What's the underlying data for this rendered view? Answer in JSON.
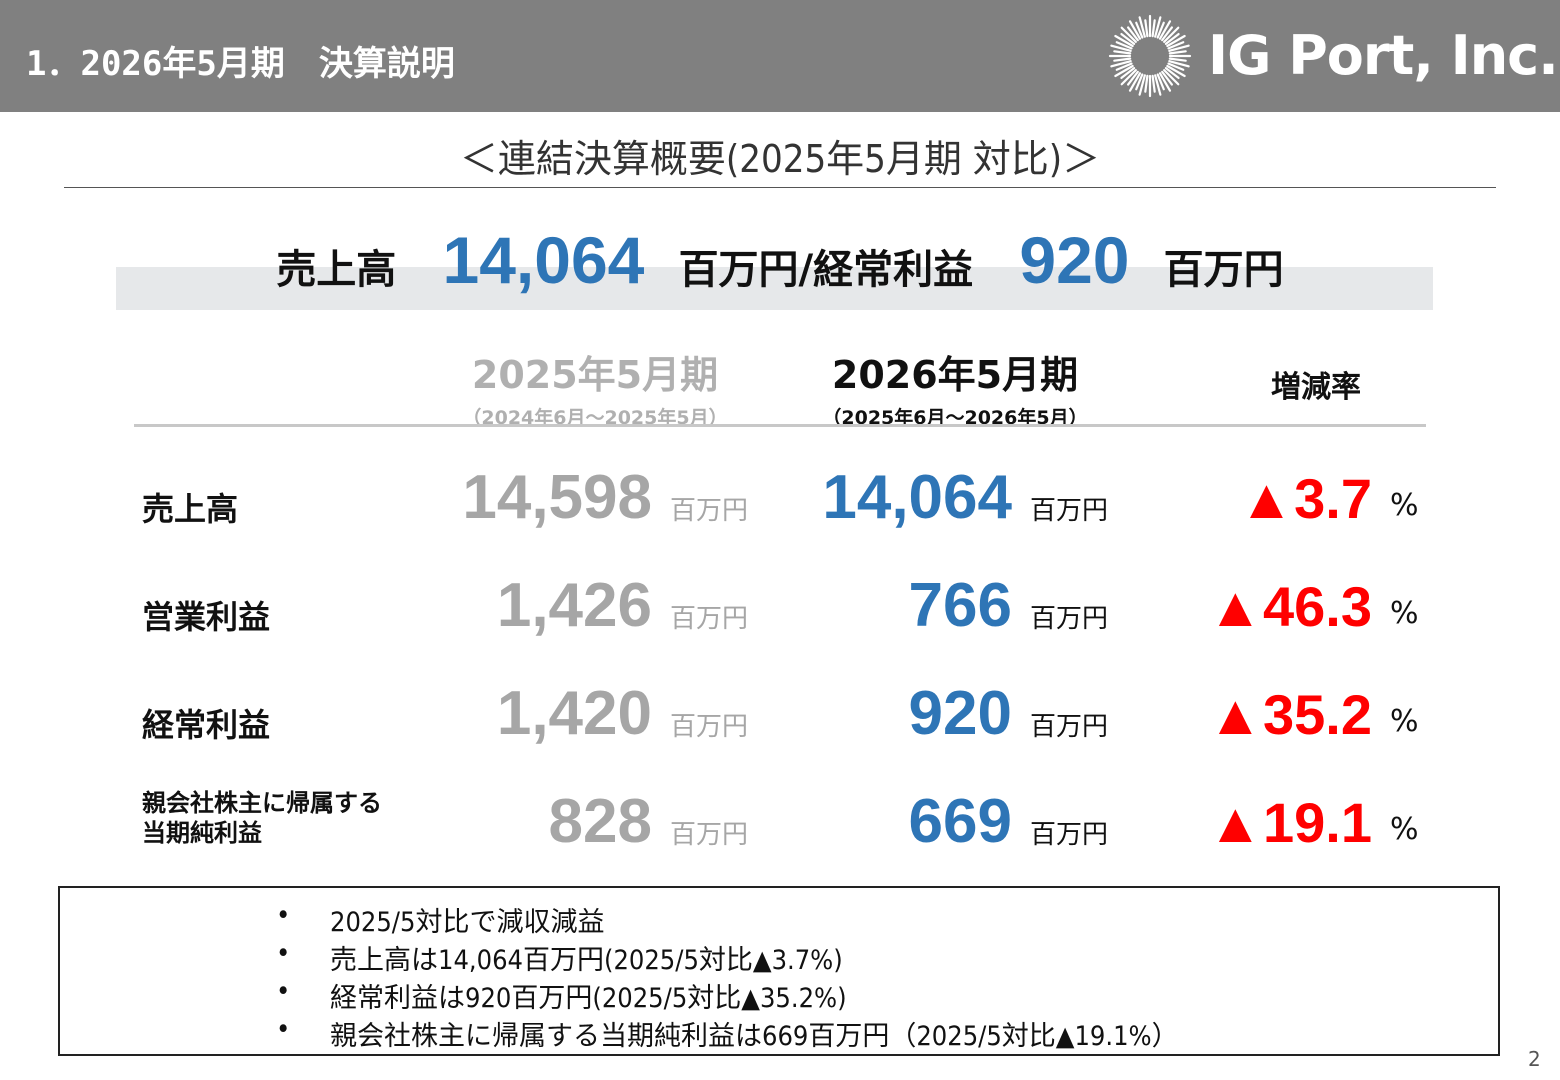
{
  "header": {
    "title": "1．2026年5月期　決算説明",
    "logo_text": "IG Port, Inc."
  },
  "subtitle": "＜連結決算概要(2025年5月期 対比)＞",
  "summary": {
    "label_sales": "売上高",
    "value_sales": "14,064",
    "mid_text": "百万円/経常利益",
    "value_ordinary": "920",
    "unit": "百万円"
  },
  "table": {
    "prev_period": "2025年5月期",
    "prev_range": "（2024年6月～2025年5月）",
    "cur_period": "2026年5月期",
    "cur_range": "（2025年6月～2026年5月）",
    "rate_header": "増減率",
    "unit": "百万円",
    "pct": "%",
    "rows": [
      {
        "label": "売上高",
        "prev": "14,598",
        "cur": "14,064",
        "rate": "▲3.7"
      },
      {
        "label": "営業利益",
        "prev": "1,426",
        "cur": "766",
        "rate": "▲46.3"
      },
      {
        "label": "経常利益",
        "prev": "1,420",
        "cur": "920",
        "rate": "▲35.2"
      },
      {
        "label_line1": "親会社株主に帰属する",
        "label_line2": "当期純利益",
        "prev": "828",
        "cur": "669",
        "rate": "▲19.1"
      }
    ]
  },
  "notes": {
    "bullet": "•",
    "items": [
      "2025/5対比で減収減益",
      "売上高は14,064百万円(2025/5対比▲3.7%)",
      "経常利益は920百万円(2025/5対比▲35.2%)",
      "親会社株主に帰属する当期純利益は669百万円（2025/5対比▲19.1%）"
    ]
  },
  "page_number": "2",
  "colors": {
    "header_bg": "#808080",
    "accent_blue": "#2e75b6",
    "decline_red": "#ff0000",
    "prev_gray": "#a6a6a6"
  }
}
